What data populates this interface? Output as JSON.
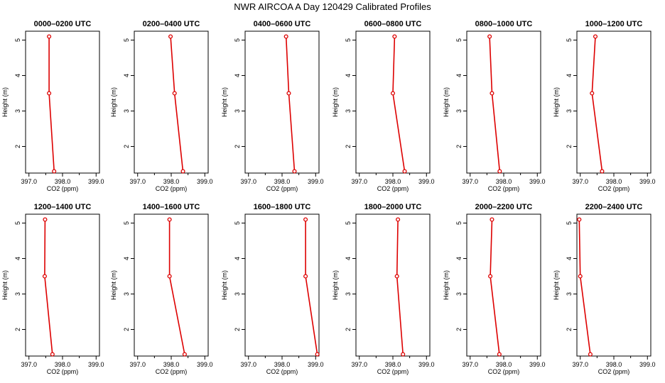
{
  "chart_data": {
    "type": "line",
    "title": "NWR AIRCOA A  Day 120429  Calibrated Profiles",
    "xlabel": "CO2 (ppm)",
    "ylabel": "Height (m)",
    "xlim": [
      396.9,
      399.1
    ],
    "ylim": [
      1.25,
      5.25
    ],
    "xticks": [
      397.0,
      398.0,
      399.0
    ],
    "xtick_labels": [
      "397.0",
      "398.0",
      "399.0"
    ],
    "xminor": [
      397.5,
      398.5
    ],
    "yticks": [
      2,
      3,
      4,
      5
    ],
    "ytick_labels": [
      "2",
      "3",
      "4",
      "5"
    ],
    "heights": [
      5.1,
      3.5,
      1.3
    ],
    "line_color": "#dd0000",
    "panels": [
      {
        "title": "0000–0200 UTC",
        "co2": [
          397.6,
          397.6,
          397.75
        ]
      },
      {
        "title": "0200–0400 UTC",
        "co2": [
          397.98,
          398.1,
          398.35
        ]
      },
      {
        "title": "0400–0600 UTC",
        "co2": [
          398.12,
          398.2,
          398.37
        ]
      },
      {
        "title": "0600–0800 UTC",
        "co2": [
          398.05,
          398.0,
          398.35
        ]
      },
      {
        "title": "0800–1000 UTC",
        "co2": [
          397.58,
          397.65,
          397.88
        ]
      },
      {
        "title": "1000–1200 UTC",
        "co2": [
          397.45,
          397.35,
          397.65
        ]
      },
      {
        "title": "1200–1400 UTC",
        "co2": [
          397.48,
          397.47,
          397.7
        ]
      },
      {
        "title": "1400–1600 UTC",
        "co2": [
          397.95,
          397.95,
          398.4
        ]
      },
      {
        "title": "1600–1800 UTC",
        "co2": [
          398.7,
          398.7,
          399.05
        ]
      },
      {
        "title": "1800–2000 UTC",
        "co2": [
          398.15,
          398.12,
          398.3
        ]
      },
      {
        "title": "2000–2200 UTC",
        "co2": [
          397.65,
          397.6,
          397.87
        ]
      },
      {
        "title": "2200–2400 UTC",
        "co2": [
          396.97,
          397.0,
          397.3
        ]
      }
    ]
  }
}
